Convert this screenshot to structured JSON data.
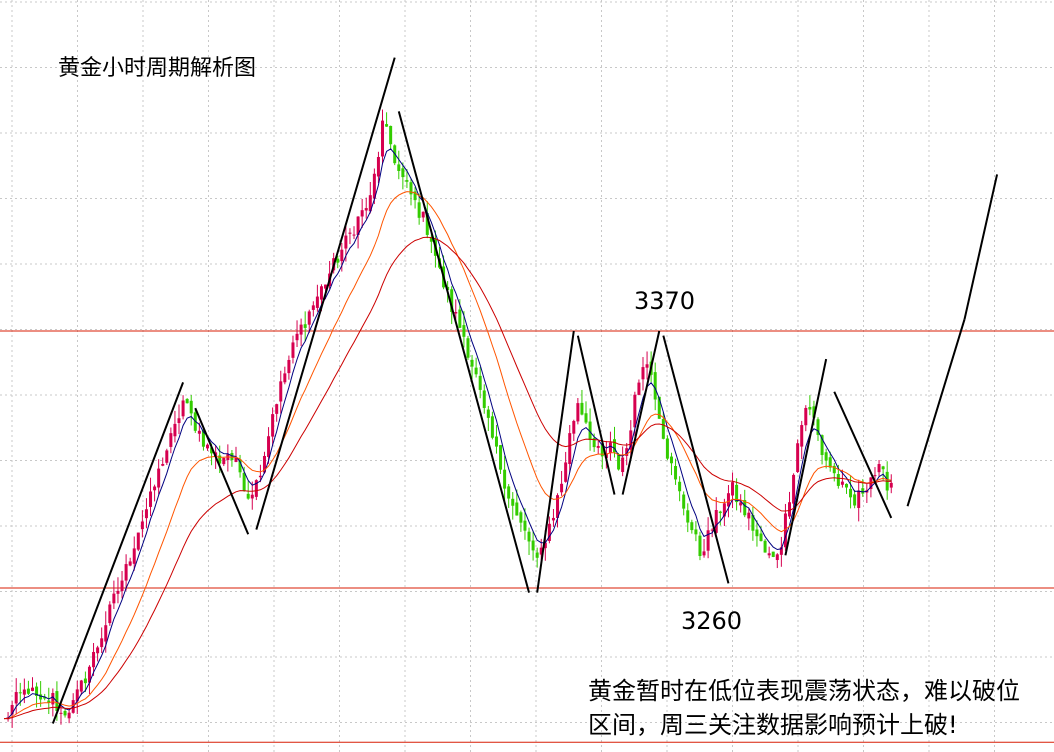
{
  "chart_data": {
    "type": "candlestick",
    "title": "黄金小时周期解析图",
    "xlabel": "",
    "ylabel": "",
    "timeframe": "1h",
    "ylim": [
      3195,
      3470
    ],
    "grid": true,
    "grid_style": "dotted",
    "levels": [
      {
        "label": "3370",
        "value": 3370,
        "color": "#d81e06"
      },
      {
        "label": "3260",
        "value": 3260,
        "color": "#d81e06"
      }
    ],
    "bottom_line": 3194,
    "colors": {
      "up": "#d6004f",
      "down": "#33cc00",
      "ma_fast": "#000080",
      "ma_mid": "#ff5500",
      "ma_slow": "#cc0000",
      "trend_lines": "#000000"
    },
    "close_path": [
      [
        0,
        3203
      ],
      [
        3,
        3212
      ],
      [
        6,
        3217
      ],
      [
        9,
        3210
      ],
      [
        12,
        3213
      ],
      [
        14,
        3206
      ],
      [
        17,
        3210
      ],
      [
        20,
        3222
      ],
      [
        24,
        3240
      ],
      [
        27,
        3255
      ],
      [
        30,
        3268
      ],
      [
        33,
        3285
      ],
      [
        36,
        3298
      ],
      [
        39,
        3315
      ],
      [
        42,
        3328
      ],
      [
        44,
        3340
      ],
      [
        47,
        3330
      ],
      [
        50,
        3320
      ],
      [
        53,
        3315
      ],
      [
        55,
        3318
      ],
      [
        58,
        3310
      ],
      [
        60,
        3300
      ],
      [
        62,
        3305
      ],
      [
        64,
        3318
      ],
      [
        66,
        3335
      ],
      [
        69,
        3352
      ],
      [
        72,
        3368
      ],
      [
        75,
        3378
      ],
      [
        78,
        3388
      ],
      [
        81,
        3398
      ],
      [
        84,
        3408
      ],
      [
        87,
        3418
      ],
      [
        90,
        3426
      ],
      [
        92,
        3446
      ],
      [
        93,
        3458
      ],
      [
        95,
        3450
      ],
      [
        97,
        3438
      ],
      [
        100,
        3428
      ],
      [
        103,
        3418
      ],
      [
        105,
        3410
      ],
      [
        107,
        3395
      ],
      [
        110,
        3380
      ],
      [
        113,
        3368
      ],
      [
        116,
        3350
      ],
      [
        118,
        3335
      ],
      [
        121,
        3318
      ],
      [
        124,
        3300
      ],
      [
        126,
        3290
      ],
      [
        129,
        3280
      ],
      [
        131,
        3270
      ],
      [
        133,
        3282
      ],
      [
        135,
        3292
      ],
      [
        137,
        3305
      ],
      [
        139,
        3325
      ],
      [
        141,
        3340
      ],
      [
        143,
        3332
      ],
      [
        145,
        3320
      ],
      [
        147,
        3315
      ],
      [
        149,
        3320
      ],
      [
        151,
        3312
      ],
      [
        153,
        3320
      ],
      [
        155,
        3340
      ],
      [
        157,
        3358
      ],
      [
        159,
        3352
      ],
      [
        161,
        3335
      ],
      [
        163,
        3318
      ],
      [
        165,
        3305
      ],
      [
        167,
        3295
      ],
      [
        169,
        3285
      ],
      [
        171,
        3275
      ],
      [
        173,
        3282
      ],
      [
        175,
        3290
      ],
      [
        177,
        3298
      ],
      [
        179,
        3302
      ],
      [
        181,
        3295
      ],
      [
        183,
        3290
      ],
      [
        185,
        3282
      ],
      [
        187,
        3275
      ],
      [
        189,
        3272
      ],
      [
        191,
        3280
      ],
      [
        193,
        3300
      ],
      [
        195,
        3322
      ],
      [
        197,
        3338
      ],
      [
        199,
        3332
      ],
      [
        201,
        3318
      ],
      [
        203,
        3312
      ],
      [
        205,
        3305
      ],
      [
        207,
        3300
      ],
      [
        209,
        3296
      ],
      [
        211,
        3302
      ],
      [
        213,
        3308
      ],
      [
        215,
        3310
      ],
      [
        217,
        3305
      ],
      [
        218,
        3305
      ]
    ],
    "x_range": [
      0,
      235
    ],
    "ma_periods_visual": [
      "fast",
      "mid",
      "slow"
    ],
    "trend_lines": [
      {
        "from": [
          12,
          3202
        ],
        "to": [
          44,
          3348
        ]
      },
      {
        "from": [
          47,
          3337
        ],
        "to": [
          60,
          3283
        ]
      },
      {
        "from": [
          62,
          3285
        ],
        "to": [
          96,
          3487
        ]
      },
      {
        "from": [
          97,
          3464
        ],
        "to": [
          129,
          3258
        ]
      },
      {
        "from": [
          131,
          3258
        ],
        "to": [
          140,
          3370
        ]
      },
      {
        "from": [
          141,
          3368
        ],
        "to": [
          150,
          3300
        ]
      },
      {
        "from": [
          152,
          3300
        ],
        "to": [
          161,
          3370
        ]
      },
      {
        "from": [
          162,
          3368
        ],
        "to": [
          178,
          3262
        ]
      },
      {
        "from": [
          192,
          3274
        ],
        "to": [
          202,
          3358
        ]
      },
      {
        "from": [
          204,
          3344
        ],
        "to": [
          218,
          3290
        ]
      },
      {
        "from": [
          222,
          3295
        ],
        "to": [
          236,
          3375
        ]
      },
      {
        "from": [
          236,
          3375
        ],
        "to": [
          244,
          3437
        ]
      }
    ]
  },
  "annotations": {
    "high_label": "3370",
    "low_label": "3260",
    "note_line1": "黄金暂时在低位表现震荡状态，难以破位",
    "note_line2": "区间，周三关注数据影响预计上破!"
  }
}
